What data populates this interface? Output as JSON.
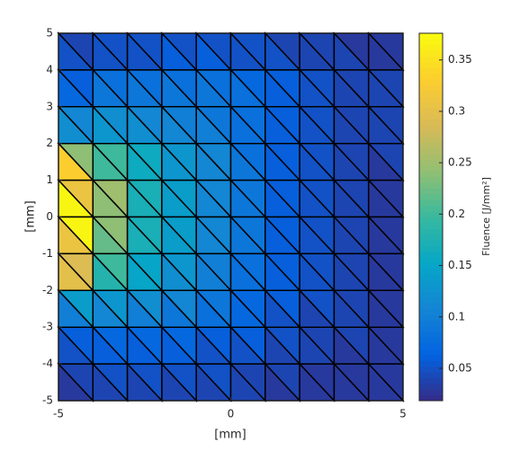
{
  "chart_data": {
    "type": "trimesh",
    "xlabel": "[mm]",
    "ylabel": "[mm]",
    "colorbar_label": "Fluence [J/mm²]",
    "xlim": [
      -5,
      5
    ],
    "ylim": [
      -5,
      5
    ],
    "xticks": [
      -5,
      0,
      5
    ],
    "yticks": [
      -5,
      -4,
      -3,
      -2,
      -1,
      0,
      1,
      2,
      3,
      4,
      5
    ],
    "clim": [
      0.0185,
      0.376
    ],
    "cticks": [
      0.05,
      0.1,
      0.15,
      0.2,
      0.25,
      0.3,
      0.35
    ],
    "colormap": "parula",
    "edge_color": "#000000",
    "x_edges": [
      -5,
      -4,
      -3,
      -2,
      -1,
      0,
      1,
      2,
      3,
      4,
      5
    ],
    "y_edges": [
      5,
      4,
      3,
      2,
      1,
      0,
      -1,
      -2,
      -3,
      -4,
      -5
    ],
    "z_upper": [
      [
        0.04,
        0.05,
        0.05,
        0.05,
        0.05,
        0.05,
        0.04,
        0.04,
        0.03,
        0.03
      ],
      [
        0.06,
        0.08,
        0.08,
        0.08,
        0.08,
        0.07,
        0.06,
        0.05,
        0.04,
        0.04
      ],
      [
        0.11,
        0.12,
        0.11,
        0.1,
        0.09,
        0.08,
        0.06,
        0.05,
        0.04,
        0.04
      ],
      [
        0.24,
        0.2,
        0.16,
        0.13,
        0.11,
        0.08,
        0.06,
        0.05,
        0.04,
        0.04
      ],
      [
        0.31,
        0.25,
        0.17,
        0.14,
        0.11,
        0.09,
        0.06,
        0.05,
        0.04,
        0.03
      ],
      [
        0.37,
        0.24,
        0.17,
        0.14,
        0.11,
        0.09,
        0.06,
        0.05,
        0.04,
        0.03
      ],
      [
        0.29,
        0.2,
        0.15,
        0.13,
        0.1,
        0.08,
        0.06,
        0.05,
        0.04,
        0.03
      ],
      [
        0.14,
        0.13,
        0.12,
        0.11,
        0.09,
        0.07,
        0.06,
        0.05,
        0.04,
        0.03
      ],
      [
        0.06,
        0.07,
        0.07,
        0.07,
        0.06,
        0.06,
        0.05,
        0.04,
        0.04,
        0.03
      ],
      [
        0.04,
        0.05,
        0.05,
        0.05,
        0.05,
        0.04,
        0.04,
        0.03,
        0.03,
        0.03
      ]
    ],
    "z_lower": [
      [
        0.05,
        0.05,
        0.05,
        0.06,
        0.06,
        0.05,
        0.05,
        0.04,
        0.04,
        0.03
      ],
      [
        0.07,
        0.09,
        0.09,
        0.09,
        0.09,
        0.08,
        0.06,
        0.05,
        0.04,
        0.04
      ],
      [
        0.12,
        0.13,
        0.12,
        0.11,
        0.1,
        0.08,
        0.06,
        0.05,
        0.04,
        0.04
      ],
      [
        0.33,
        0.2,
        0.16,
        0.13,
        0.11,
        0.09,
        0.06,
        0.05,
        0.04,
        0.03
      ],
      [
        0.37,
        0.24,
        0.17,
        0.14,
        0.11,
        0.09,
        0.06,
        0.05,
        0.04,
        0.03
      ],
      [
        0.31,
        0.22,
        0.17,
        0.14,
        0.11,
        0.09,
        0.06,
        0.05,
        0.04,
        0.03
      ],
      [
        0.3,
        0.18,
        0.15,
        0.12,
        0.1,
        0.08,
        0.06,
        0.05,
        0.04,
        0.03
      ],
      [
        0.1,
        0.11,
        0.1,
        0.09,
        0.08,
        0.07,
        0.05,
        0.04,
        0.04,
        0.03
      ],
      [
        0.05,
        0.06,
        0.06,
        0.06,
        0.05,
        0.05,
        0.04,
        0.04,
        0.03,
        0.03
      ],
      [
        0.03,
        0.04,
        0.04,
        0.04,
        0.04,
        0.04,
        0.03,
        0.03,
        0.03,
        0.03
      ]
    ]
  }
}
